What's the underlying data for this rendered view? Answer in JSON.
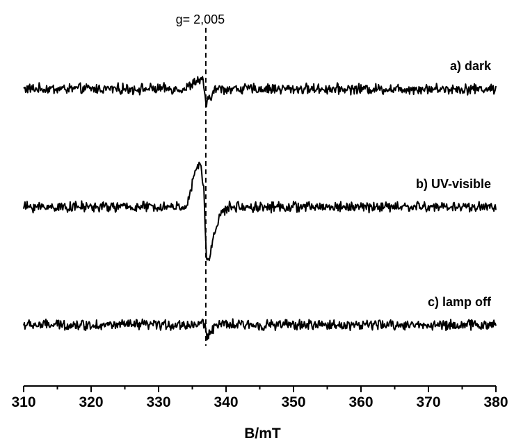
{
  "chart_data": {
    "type": "line",
    "title": "",
    "xlabel": "B/mT",
    "ylabel": "",
    "xlim": [
      310,
      380
    ],
    "x_ticks": [
      "310",
      "320",
      "330",
      "340",
      "350",
      "360",
      "370",
      "380"
    ],
    "grid": false,
    "y_axis_visible": false,
    "reference_line": {
      "x": 337.0,
      "label": "g= 2,005",
      "style": "dashed"
    },
    "series": [
      {
        "name": "a) dark",
        "description_points": [
          [
            310,
            0.0
          ],
          [
            334,
            0.0
          ],
          [
            335.8,
            0.6
          ],
          [
            336.6,
            0.5
          ],
          [
            337.1,
            -1.1
          ],
          [
            337.6,
            -0.6
          ],
          [
            338.5,
            0.0
          ],
          [
            380,
            0.0
          ]
        ]
      },
      {
        "name": "b) UV-visible",
        "description_points": [
          [
            310,
            0.0
          ],
          [
            333,
            0.0
          ],
          [
            334.3,
            0.1
          ],
          [
            334.9,
            1.4
          ],
          [
            335.7,
            2.8
          ],
          [
            336.2,
            2.9
          ],
          [
            336.7,
            1.2
          ],
          [
            337.1,
            -3.5
          ],
          [
            337.4,
            -3.9
          ],
          [
            338.0,
            -2.3
          ],
          [
            339.0,
            -0.6
          ],
          [
            340.5,
            0.0
          ],
          [
            380,
            0.0
          ]
        ]
      },
      {
        "name": "c) lamp off",
        "description_points": [
          [
            310,
            0.0
          ],
          [
            336,
            0.0
          ],
          [
            336.6,
            0.3
          ],
          [
            337.2,
            -0.8
          ],
          [
            337.8,
            -0.3
          ],
          [
            338.6,
            0.0
          ],
          [
            380,
            0.0
          ]
        ]
      }
    ]
  }
}
